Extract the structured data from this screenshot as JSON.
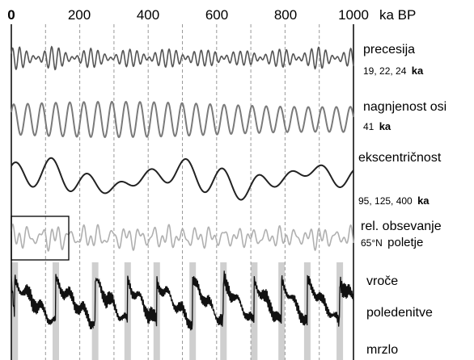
{
  "chart_data": {
    "type": "line",
    "x_axis": {
      "unit": "ka BP",
      "range": [
        0,
        1000
      ],
      "ticks": [
        {
          "value": 0,
          "label": "0"
        },
        {
          "value": 200,
          "label": "200"
        },
        {
          "value": 400,
          "label": "400"
        },
        {
          "value": 600,
          "label": "600"
        },
        {
          "value": 800,
          "label": "800"
        },
        {
          "value": 1000,
          "label": "1000"
        }
      ],
      "gridlines": [
        100,
        200,
        300,
        400,
        500,
        600,
        700,
        800,
        900
      ]
    },
    "series": [
      {
        "name": "precesija",
        "sublabel": "19, 22, 24",
        "sublabel_unit": "ka",
        "periods_ka": [
          19,
          22,
          24
        ],
        "color": "#555555"
      },
      {
        "name": "nagnjenost osi",
        "sublabel": "41",
        "sublabel_unit": "ka",
        "periods_ka": [
          41
        ],
        "color": "#7a7a7a"
      },
      {
        "name": "ekscentričnost",
        "sublabel": "95, 125, 400",
        "sublabel_unit": "ka",
        "periods_ka": [
          95,
          125,
          400
        ],
        "color": "#222222"
      },
      {
        "name": "rel. obsevanje",
        "sublabel_prefix": "65°N",
        "sublabel_word": "poletje",
        "color": "#b0b0b0"
      },
      {
        "name": "poledenitve",
        "top_label": "vroče",
        "bottom_label": "mrzlo",
        "color": "#111111"
      }
    ],
    "glacial_terminations_ka": [
      10,
      130,
      245,
      340,
      425,
      530,
      620,
      710,
      790,
      865,
      960
    ]
  }
}
